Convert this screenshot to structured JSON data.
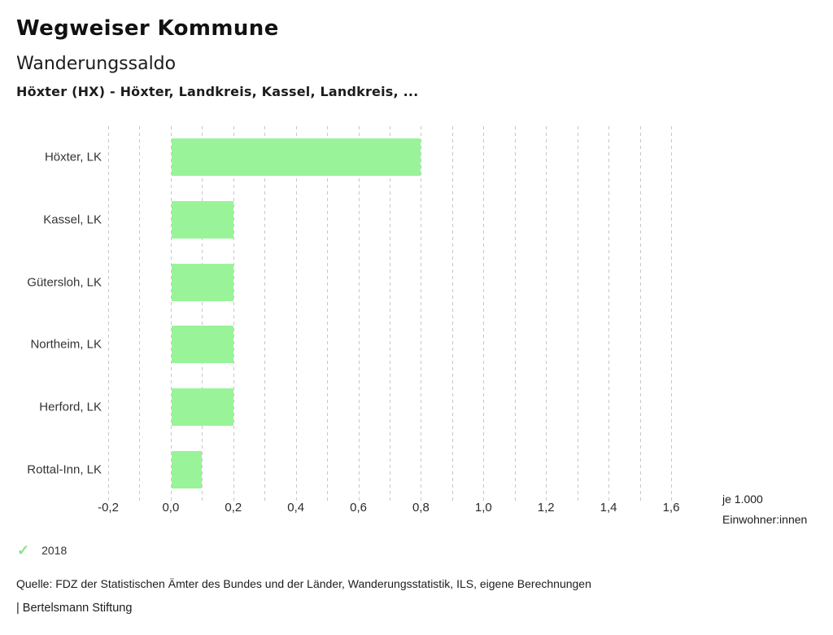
{
  "header": {
    "brand": "Wegweiser Kommune",
    "title": "Wanderungssaldo",
    "subtitle": "Höxter (HX) - Höxter, Landkreis, Kassel, Landkreis, ..."
  },
  "chart_data": {
    "type": "bar",
    "orientation": "horizontal",
    "title": "Wanderungssaldo",
    "categories": [
      "Höxter, LK",
      "Kassel, LK",
      "Gütersloh, LK",
      "Northeim, LK",
      "Herford, LK",
      "Rottal-Inn, LK"
    ],
    "series": [
      {
        "name": "2018",
        "values": [
          0.8,
          0.2,
          0.2,
          0.2,
          0.2,
          0.1
        ]
      }
    ],
    "xlim": [
      -0.2,
      1.6
    ],
    "x_ticks": [
      -0.2,
      0.0,
      0.2,
      0.4,
      0.6,
      0.8,
      1.0,
      1.2,
      1.4,
      1.6
    ],
    "x_tick_labels": [
      "-0,2",
      "0,0",
      "0,2",
      "0,4",
      "0,6",
      "0,8",
      "1,0",
      "1,2",
      "1,4",
      "1,6"
    ],
    "gridline_step": 0.1,
    "grid_style": "dashed-vertical",
    "unit_label_lines": [
      "je 1.000",
      "Einwohner:innen"
    ],
    "bar_color": "#99f499",
    "gridline_color": "#c7c7c7"
  },
  "legend": {
    "check_glyph": "✓",
    "check_color": "#8ce08c",
    "label": "2018"
  },
  "source": "Quelle: FDZ der Statistischen Ämter des Bundes und der Länder, Wanderungsstatistik, ILS, eigene Berechnungen",
  "footer": "| Bertelsmann Stiftung"
}
